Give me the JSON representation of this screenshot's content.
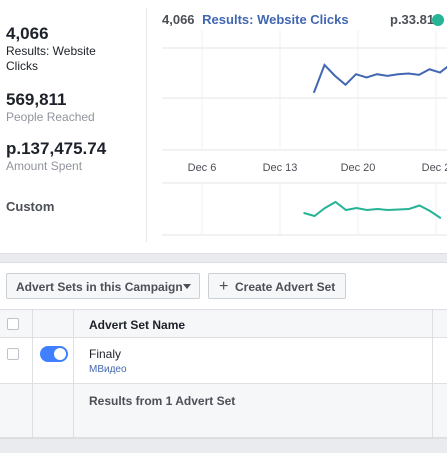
{
  "metrics": {
    "results_value": "4,066",
    "results_label": "Results: Website Clicks",
    "reach_value": "569,811",
    "reach_label": "People Reached",
    "spent_value": "p.137,475.74",
    "spent_label": "Amount Spent"
  },
  "date_range_label": "Custom",
  "chart_header": {
    "count": "4,066",
    "title": "Results: Website Clicks",
    "cost": "p.33.81"
  },
  "chart_data": [
    {
      "type": "line",
      "series": [
        {
          "values": [
            155,
            238,
            205,
            178,
            210,
            200,
            210,
            205,
            210,
            212,
            208,
            225,
            215,
            240,
            225
          ]
        }
      ],
      "color": "#4267b2",
      "x_ticks": [
        "Dec 6",
        "Dec 13",
        "Dec 20",
        "Dec 2"
      ]
    },
    {
      "type": "line",
      "series": [
        {
          "values": [
            40,
            34,
            50,
            62,
            46,
            50,
            46,
            48,
            46,
            47,
            48,
            55,
            44,
            30
          ]
        }
      ],
      "color": "#27b396"
    }
  ],
  "toolbar": {
    "adsets_dropdown": "Advert Sets in this Campaign",
    "create_button": "Create Advert Set"
  },
  "table": {
    "header": "Advert Set Name",
    "rows": [
      {
        "name": "Finaly",
        "subtitle": "МВидео",
        "enabled": true
      }
    ],
    "footer": "Results from 1 Advert Set"
  },
  "colors": {
    "accent": "#4267b2",
    "toggle": "#4080ff",
    "secondary_line": "#27b396"
  },
  "icons": [
    "caret-down-icon",
    "plus-icon",
    "toggle-icon"
  ]
}
